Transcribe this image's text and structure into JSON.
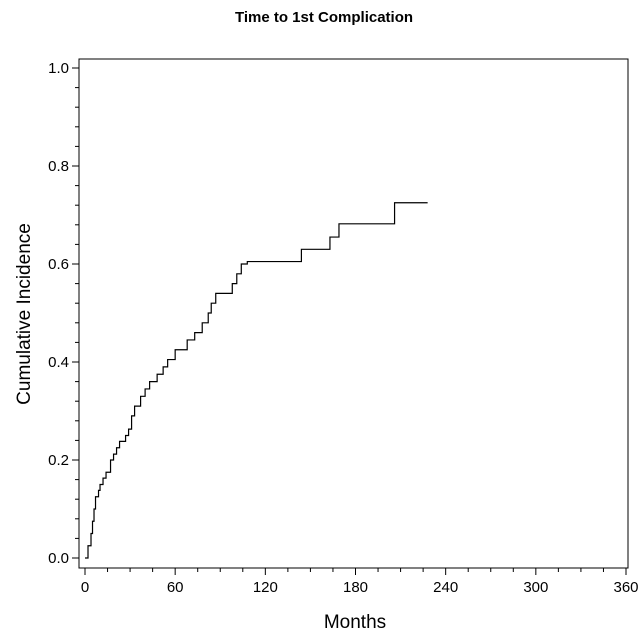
{
  "chart_data": {
    "type": "line",
    "step": true,
    "title": "Time to 1st Complication",
    "xlabel": "Months",
    "ylabel": "Cumulative Incidence",
    "xlim": [
      0,
      360
    ],
    "ylim": [
      0,
      1.0
    ],
    "xticks": [
      0,
      60,
      120,
      180,
      240,
      300,
      360
    ],
    "xtick_labels": [
      "0",
      "60",
      "120",
      "180",
      "240",
      "300",
      "360"
    ],
    "yticks": [
      0,
      0.2,
      0.4,
      0.6,
      0.8,
      1.0
    ],
    "ytick_labels": [
      "0.0",
      "0.2",
      "0.4",
      "0.6",
      "0.8",
      "1.0"
    ],
    "grid": false,
    "legend": "none",
    "line_color": "#000000",
    "series": [
      {
        "x": [
          0,
          2,
          4,
          5,
          6,
          7,
          9,
          10,
          12,
          14,
          17,
          19,
          21,
          23,
          27,
          29,
          31,
          33,
          37,
          40,
          43,
          48,
          52,
          55,
          60,
          68,
          73,
          78,
          82,
          84,
          87,
          98,
          101,
          104,
          108,
          144,
          163,
          169,
          206,
          228
        ],
        "y": [
          0.0,
          0.025,
          0.05,
          0.075,
          0.1,
          0.125,
          0.138,
          0.15,
          0.163,
          0.175,
          0.2,
          0.212,
          0.225,
          0.238,
          0.25,
          0.263,
          0.29,
          0.31,
          0.33,
          0.345,
          0.36,
          0.375,
          0.39,
          0.405,
          0.425,
          0.445,
          0.46,
          0.48,
          0.5,
          0.52,
          0.54,
          0.56,
          0.58,
          0.6,
          0.605,
          0.63,
          0.655,
          0.682,
          0.725,
          0.725
        ]
      }
    ]
  }
}
